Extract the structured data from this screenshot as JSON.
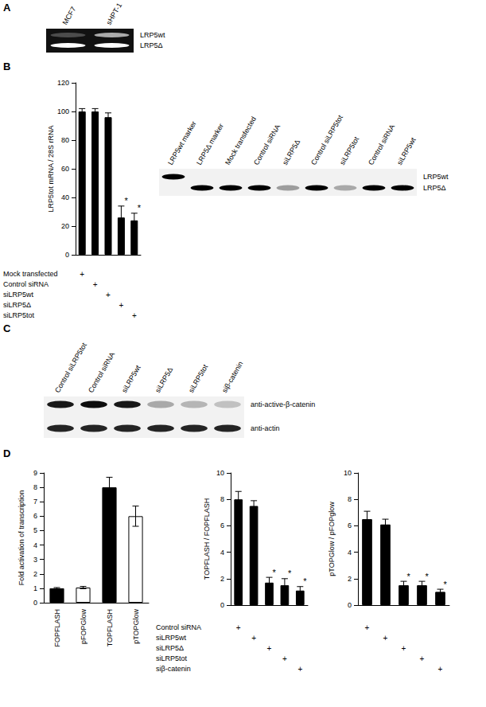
{
  "panel_labels": [
    "A",
    "B",
    "C",
    "D"
  ],
  "blots": [
    {
      "lanes": [
        "MCF7",
        "sHPT-1"
      ],
      "rows": [
        {
          "label": "LRP5wt",
          "intensities": [
            0.25,
            0.65
          ]
        },
        {
          "label": "LRP5Δ",
          "intensities": [
            1,
            1
          ]
        }
      ],
      "background": "#111111",
      "band_color": "#ffffff"
    },
    {
      "lanes": [
        "LRP5wt marker",
        "LRP5Δ marker",
        "Mock transfected",
        "Control siRNA",
        "siLRP5Δ",
        "Control siLRP5tot",
        "siLRP5tot",
        "Control siRNA",
        "siLRP5wt"
      ],
      "rows": [
        {
          "label": "LRP5wt",
          "intensities": [
            1,
            0,
            0,
            0,
            0,
            0,
            0,
            0,
            0
          ]
        },
        {
          "label": "LRP5Δ",
          "intensities": [
            0,
            1,
            1,
            1,
            0.35,
            1,
            0.3,
            1,
            1
          ]
        }
      ],
      "background": "#f2f2f2",
      "band_color": "#000000"
    },
    {
      "lanes": [
        "Control siLRP5tot",
        "Control siRNA",
        "siLRP5wt",
        "siLRP5Δ",
        "siLRP5tot",
        "siβ-catenin"
      ],
      "rows": [
        {
          "label": "anti-active-β-catenin",
          "intensities": [
            0.9,
            0.95,
            0.9,
            0.3,
            0.25,
            0.2
          ]
        },
        {
          "label": "anti-actin",
          "intensities": [
            0.85,
            0.85,
            0.85,
            0.85,
            0.85,
            0.85
          ]
        }
      ],
      "background": "#f2f2f2",
      "band_color": "#000000"
    }
  ],
  "chart_data": [
    {
      "type": "bar",
      "ylabel": "LRP5tot mRNA / 28S rRNA",
      "categories": [
        null,
        null,
        null,
        null,
        null
      ],
      "values": [
        100,
        100,
        96,
        26,
        24
      ],
      "errors": [
        2,
        2,
        3,
        8,
        5
      ],
      "annotations": [
        null,
        null,
        null,
        "*",
        "*"
      ],
      "color": "#000000",
      "ylim": [
        0,
        120
      ],
      "yticks": [
        0,
        20,
        40,
        60,
        80,
        100,
        120
      ],
      "grid": false,
      "tick_labels": "y",
      "conditions": [
        {
          "label": "Mock transfected",
          "marks": [
            "+",
            null,
            null,
            null,
            null
          ]
        },
        {
          "label": "Control siRNA",
          "marks": [
            null,
            "+",
            null,
            null,
            null
          ]
        },
        {
          "label": "siLRP5wt",
          "marks": [
            null,
            null,
            "+",
            null,
            null
          ]
        },
        {
          "label": "siLRP5Δ",
          "marks": [
            null,
            null,
            null,
            "+",
            null
          ]
        },
        {
          "label": "siLRP5tot",
          "marks": [
            null,
            null,
            null,
            null,
            "+"
          ]
        }
      ]
    },
    {
      "type": "bar",
      "ylabel": "Fold activation of transcription",
      "categories": [
        "FOPFLASH",
        "pFOPGlow",
        "TOPFLASH",
        "pTOPGlow"
      ],
      "values": [
        1,
        1.05,
        8,
        6
      ],
      "errors": [
        0.05,
        0.08,
        0.7,
        0.7
      ],
      "colors": [
        "#000000",
        "#ffffff",
        "#000000",
        "#ffffff"
      ],
      "ylim": [
        0,
        9
      ],
      "yticks": [
        0,
        1,
        2,
        3,
        4,
        5,
        6,
        7,
        8,
        9
      ],
      "grid": false
    },
    {
      "type": "bar",
      "ylabel": "TOPFLASH / FOPFLASH",
      "categories": [
        null,
        null,
        null,
        null,
        null
      ],
      "values": [
        8,
        7.5,
        1.7,
        1.5,
        1.1
      ],
      "errors": [
        0.6,
        0.4,
        0.4,
        0.5,
        0.3
      ],
      "annotations": [
        null,
        null,
        "*",
        "*",
        "*"
      ],
      "color": "#000000",
      "ylim": [
        0,
        10
      ],
      "yticks": [
        0,
        2,
        4,
        6,
        8,
        10
      ],
      "grid": false,
      "tick_labels": "y",
      "conditions": [
        {
          "label": "Control siRNA",
          "marks": [
            "+",
            null,
            null,
            null,
            null
          ]
        },
        {
          "label": "siLRP5wt",
          "marks": [
            null,
            "+",
            null,
            null,
            null
          ]
        },
        {
          "label": "siLRP5Δ",
          "marks": [
            null,
            null,
            "+",
            null,
            null
          ]
        },
        {
          "label": "siLRP5tot",
          "marks": [
            null,
            null,
            null,
            "+",
            null
          ]
        },
        {
          "label": "siβ-catenin",
          "marks": [
            null,
            null,
            null,
            null,
            "+"
          ]
        }
      ]
    },
    {
      "type": "bar",
      "ylabel": "pTOPGlow / pFOPglow",
      "categories": [
        null,
        null,
        null,
        null,
        null
      ],
      "values": [
        6.5,
        6.1,
        1.5,
        1.5,
        1.0
      ],
      "errors": [
        0.6,
        0.4,
        0.3,
        0.3,
        0.2
      ],
      "annotations": [
        null,
        null,
        "*",
        "*",
        "*"
      ],
      "color": "#000000",
      "ylim": [
        0,
        10
      ],
      "yticks": [
        0,
        2,
        4,
        6,
        8,
        10
      ],
      "grid": false,
      "tick_labels": "y",
      "conditions": [
        {
          "marks": [
            "+",
            null,
            null,
            null,
            null
          ]
        },
        {
          "marks": [
            null,
            "+",
            null,
            null,
            null
          ]
        },
        {
          "marks": [
            null,
            null,
            "+",
            null,
            null
          ]
        },
        {
          "marks": [
            null,
            null,
            null,
            "+",
            null
          ]
        },
        {
          "marks": [
            null,
            null,
            null,
            null,
            "+"
          ]
        }
      ]
    }
  ]
}
